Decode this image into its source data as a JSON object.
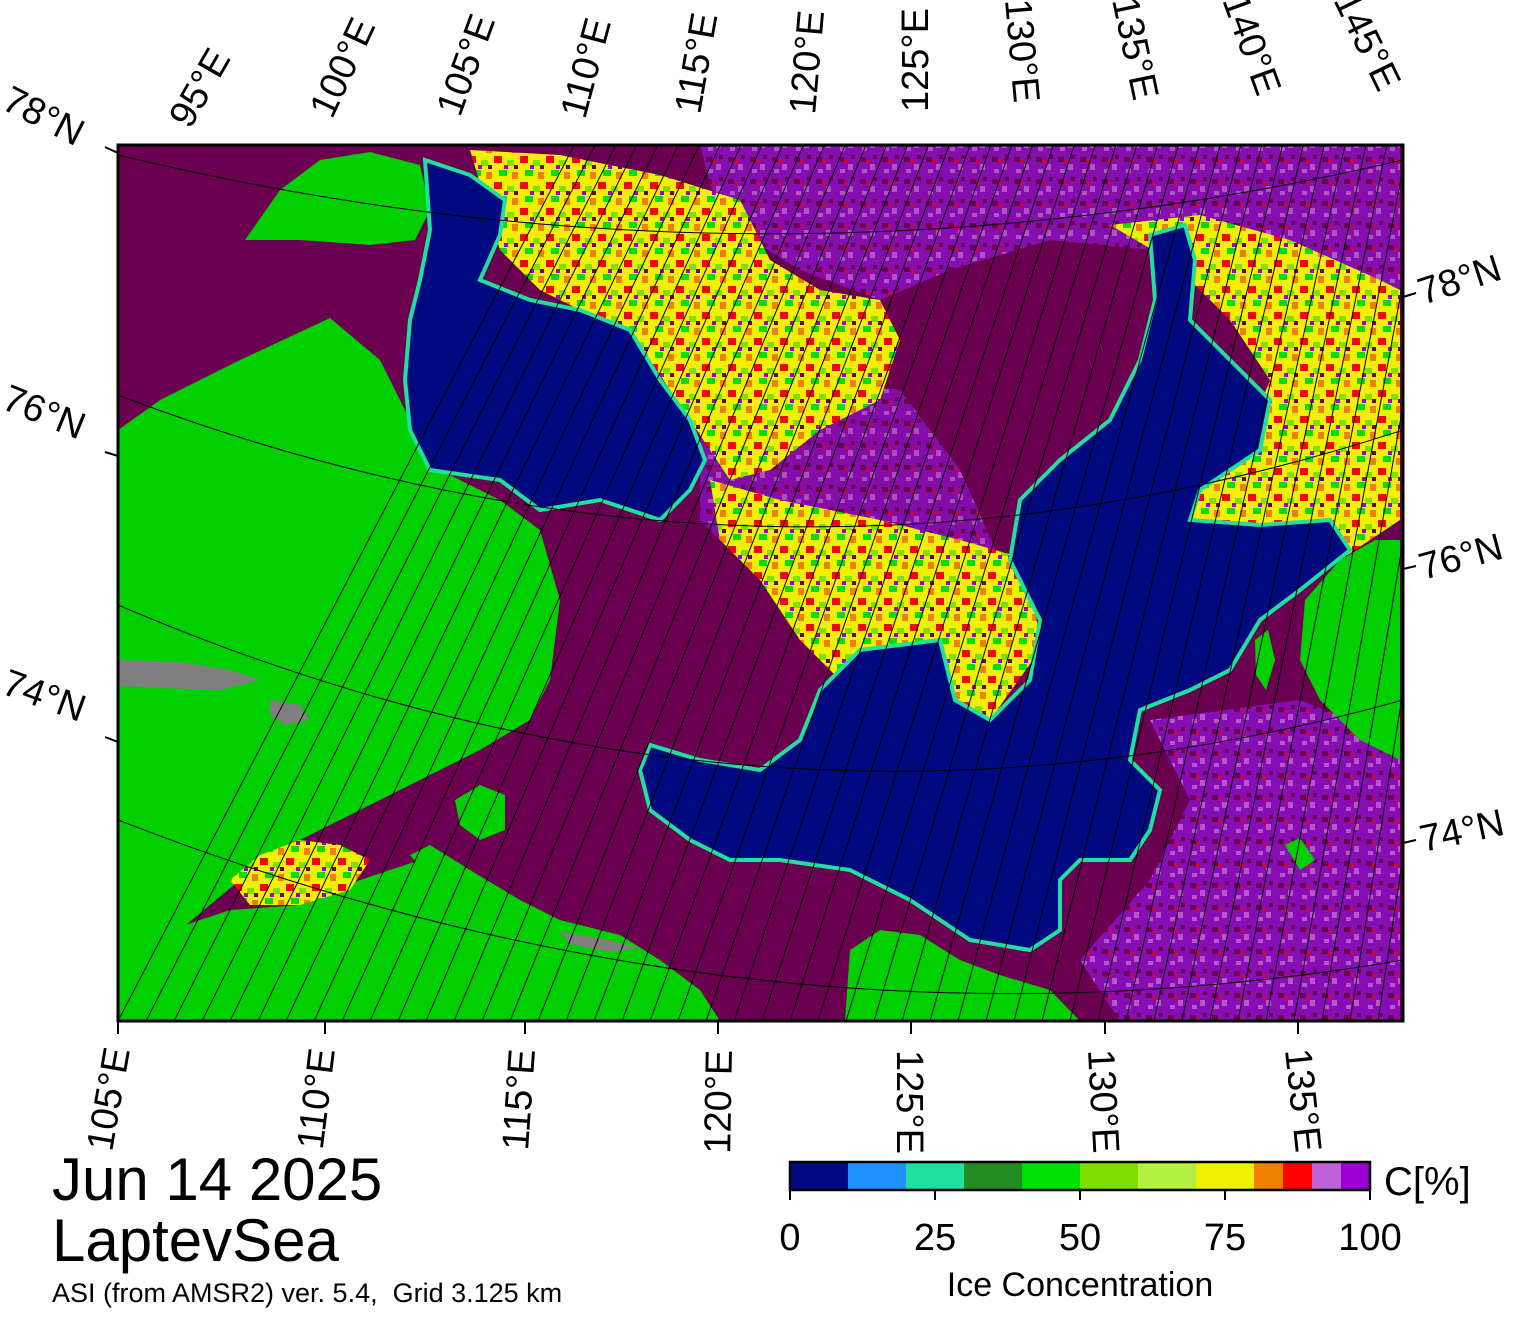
{
  "date": "Jun 14 2025",
  "region": "LaptevSea",
  "source": "ASI (from AMSR2) ver. 5.4,  Grid 3.125 km",
  "colorbar": {
    "title": "Ice Concentration",
    "unit": "C[%]",
    "ticks": [
      "0",
      "25",
      "50",
      "75",
      "100"
    ],
    "bins": [
      {
        "from": 0,
        "to": 10,
        "color": "#000a80"
      },
      {
        "from": 10,
        "to": 20,
        "color": "#1e90ff"
      },
      {
        "from": 20,
        "to": 30,
        "color": "#20e0a0"
      },
      {
        "from": 30,
        "to": 40,
        "color": "#228b22"
      },
      {
        "from": 40,
        "to": 50,
        "color": "#00e000"
      },
      {
        "from": 50,
        "to": 60,
        "color": "#7fe000"
      },
      {
        "from": 60,
        "to": 70,
        "color": "#b4f040"
      },
      {
        "from": 70,
        "to": 80,
        "color": "#f0f000"
      },
      {
        "from": 80,
        "to": 85,
        "color": "#f08000"
      },
      {
        "from": 85,
        "to": 90,
        "color": "#ff0000"
      },
      {
        "from": 90,
        "to": 95,
        "color": "#c060d8"
      },
      {
        "from": 95,
        "to": 100,
        "color": "#9a00d0"
      }
    ]
  },
  "axes": {
    "top_lon_labels": [
      "95°E",
      "100°E",
      "105°E",
      "110°E",
      "115°E",
      "120°E",
      "125°E",
      "130°E",
      "135°E",
      "140°E",
      "145°E"
    ],
    "bottom_lon_labels": [
      "105°E",
      "110°E",
      "115°E",
      "120°E",
      "125°E",
      "130°E",
      "135°E"
    ],
    "left_lat_labels": [
      "78°N",
      "76°N",
      "74°N"
    ],
    "right_lat_labels": [
      "78°N",
      "76°N",
      "74°N"
    ]
  },
  "colors": {
    "open_water": "#000a80",
    "land": "#00d000",
    "high_concentration_ice": "#6b0050",
    "no_data": "#808080"
  }
}
